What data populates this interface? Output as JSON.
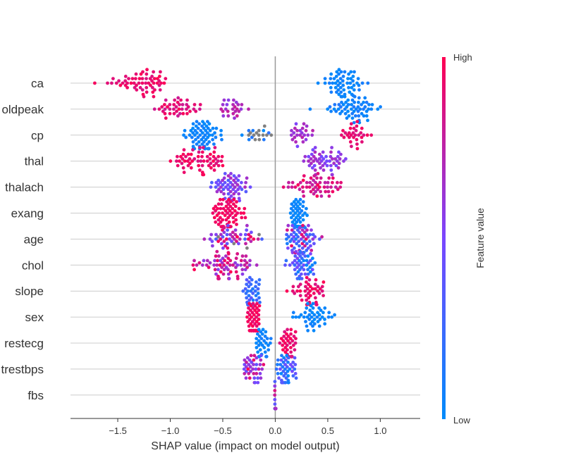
{
  "chart_data": {
    "type": "scatter",
    "subtype": "beeswarm",
    "title": "",
    "xlabel": "SHAP value (impact on model output)",
    "xlim": [
      -1.95,
      1.38
    ],
    "xticks": [
      {
        "value": -1.5,
        "label": "−1.5"
      },
      {
        "value": -1.0,
        "label": "−1.0"
      },
      {
        "value": -0.5,
        "label": "−0.5"
      },
      {
        "value": 0.0,
        "label": "0.0"
      },
      {
        "value": 0.5,
        "label": "0.5"
      },
      {
        "value": 1.0,
        "label": "1.0"
      }
    ],
    "grid": "horizontal row lines",
    "colorbar": {
      "label": "Feature value",
      "high_label": "High",
      "low_label": "Low",
      "low_color": "#008bfb",
      "high_color": "#ff0052"
    },
    "missing_color": "#808080",
    "features": [
      {
        "name": "ca",
        "clusters": [
          {
            "range": [
              -1.85,
              -0.75
            ],
            "n": 60,
            "color": [
              0.85,
              1.0
            ]
          },
          {
            "range": [
              0.3,
              1.0
            ],
            "n": 60,
            "color": [
              0.0,
              0.1
            ]
          }
        ]
      },
      {
        "name": "oldpeak",
        "clusters": [
          {
            "range": [
              -1.25,
              -0.6
            ],
            "n": 40,
            "color": [
              0.8,
              1.0
            ]
          },
          {
            "range": [
              -0.6,
              -0.2
            ],
            "n": 25,
            "color": [
              0.55,
              0.8
            ]
          },
          {
            "range": [
              0.25,
              1.2
            ],
            "n": 60,
            "color": [
              0.0,
              0.15
            ]
          }
        ]
      },
      {
        "name": "cp",
        "clusters": [
          {
            "range": [
              -0.95,
              -0.4
            ],
            "n": 70,
            "color": [
              0.0,
              0.1
            ]
          },
          {
            "range": [
              -0.4,
              0.05
            ],
            "n": 20,
            "color": [
              0.0,
              0.2
            ],
            "missing_share": 0.6
          },
          {
            "range": [
              0.05,
              0.45
            ],
            "n": 25,
            "color": [
              0.5,
              0.75
            ]
          },
          {
            "range": [
              0.5,
              1.0
            ],
            "n": 30,
            "color": [
              0.85,
              1.0
            ]
          }
        ]
      },
      {
        "name": "thal",
        "clusters": [
          {
            "range": [
              -1.15,
              -0.3
            ],
            "n": 60,
            "color": [
              0.85,
              1.0
            ]
          },
          {
            "range": [
              0.15,
              0.75
            ],
            "n": 55,
            "color": [
              0.45,
              0.7
            ]
          }
        ]
      },
      {
        "name": "thalach",
        "clusters": [
          {
            "range": [
              -0.8,
              -0.1
            ],
            "n": 60,
            "color": [
              0.3,
              0.7
            ]
          },
          {
            "range": [
              -0.1,
              0.85
            ],
            "n": 55,
            "color": [
              0.75,
              1.0
            ]
          }
        ]
      },
      {
        "name": "exang",
        "clusters": [
          {
            "range": [
              -0.7,
              -0.2
            ],
            "n": 70,
            "color": [
              0.9,
              1.0
            ]
          },
          {
            "range": [
              0.08,
              0.35
            ],
            "n": 60,
            "color": [
              0.0,
              0.08
            ]
          }
        ]
      },
      {
        "name": "age",
        "clusters": [
          {
            "range": [
              -0.8,
              0.0
            ],
            "n": 55,
            "color": [
              0.3,
              1.0
            ],
            "missing_share": 0.05
          },
          {
            "range": [
              0.0,
              0.5
            ],
            "n": 75,
            "color": [
              0.1,
              0.95
            ]
          }
        ]
      },
      {
        "name": "chol",
        "clusters": [
          {
            "range": [
              -0.95,
              0.0
            ],
            "n": 70,
            "color": [
              0.55,
              1.0
            ]
          },
          {
            "range": [
              0.0,
              0.5
            ],
            "n": 50,
            "color": [
              0.0,
              0.55
            ]
          }
        ]
      },
      {
        "name": "slope",
        "clusters": [
          {
            "range": [
              -0.35,
              -0.1
            ],
            "n": 40,
            "color": [
              0.1,
              0.4
            ]
          },
          {
            "range": [
              0.05,
              0.6
            ],
            "n": 45,
            "color": [
              0.85,
              1.0
            ]
          }
        ]
      },
      {
        "name": "sex",
        "clusters": [
          {
            "range": [
              -0.3,
              -0.1
            ],
            "n": 70,
            "color": [
              0.9,
              1.0
            ]
          },
          {
            "range": [
              0.1,
              0.65
            ],
            "n": 45,
            "color": [
              0.0,
              0.08
            ]
          }
        ]
      },
      {
        "name": "restecg",
        "clusters": [
          {
            "range": [
              -0.25,
              0.0
            ],
            "n": 35,
            "color": [
              0.0,
              0.1
            ]
          },
          {
            "range": [
              0.0,
              0.25
            ],
            "n": 40,
            "color": [
              0.85,
              1.0
            ]
          }
        ]
      },
      {
        "name": "trestbps",
        "clusters": [
          {
            "range": [
              -0.35,
              -0.05
            ],
            "n": 40,
            "color": [
              0.4,
              1.0
            ]
          },
          {
            "range": [
              -0.05,
              0.27
            ],
            "n": 50,
            "color": [
              0.0,
              0.5
            ]
          }
        ]
      },
      {
        "name": "fbs",
        "clusters": [
          {
            "range": [
              -0.01,
              0.01
            ],
            "n": 25,
            "color": [
              0.0,
              1.0
            ]
          }
        ]
      }
    ]
  }
}
